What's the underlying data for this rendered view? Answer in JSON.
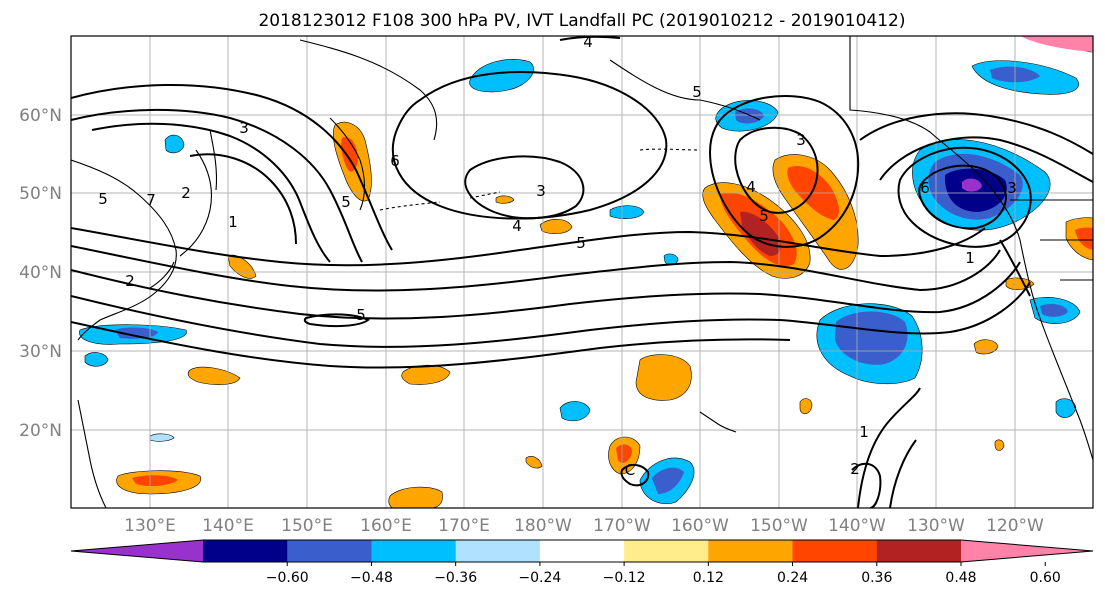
{
  "title": "2018123012 F108 300 hPa PV, IVT Landfall PC (2019010212 - 2019010412)",
  "lat_labels": [
    "60°N",
    "50°N",
    "40°N",
    "30°N",
    "20°N"
  ],
  "lon_labels": [
    "130°E",
    "140°E",
    "150°E",
    "160°E",
    "170°E",
    "180°W",
    "170°W",
    "160°W",
    "150°W",
    "140°W",
    "130°W",
    "120°W"
  ],
  "contour_labels": [
    "4",
    "3",
    "2",
    "1",
    "7",
    "5",
    "6",
    "5",
    "3",
    "4",
    "5",
    "2",
    "5",
    "5",
    "3",
    "4",
    "5",
    "6",
    "3",
    "1",
    "1",
    "2",
    "C"
  ],
  "colorbar": {
    "labels": [
      "−0.60",
      "−0.48",
      "−0.36",
      "−0.24",
      "−0.12",
      "0.12",
      "0.24",
      "0.36",
      "0.48",
      "0.60"
    ],
    "colors": [
      "#9932cc",
      "#00008b",
      "#3a5fcd",
      "#00bfff",
      "#b0e2ff",
      "#ffffff",
      "#ffec8b",
      "#ffa500",
      "#ff4500",
      "#b22222",
      "#ff83a8"
    ]
  }
}
